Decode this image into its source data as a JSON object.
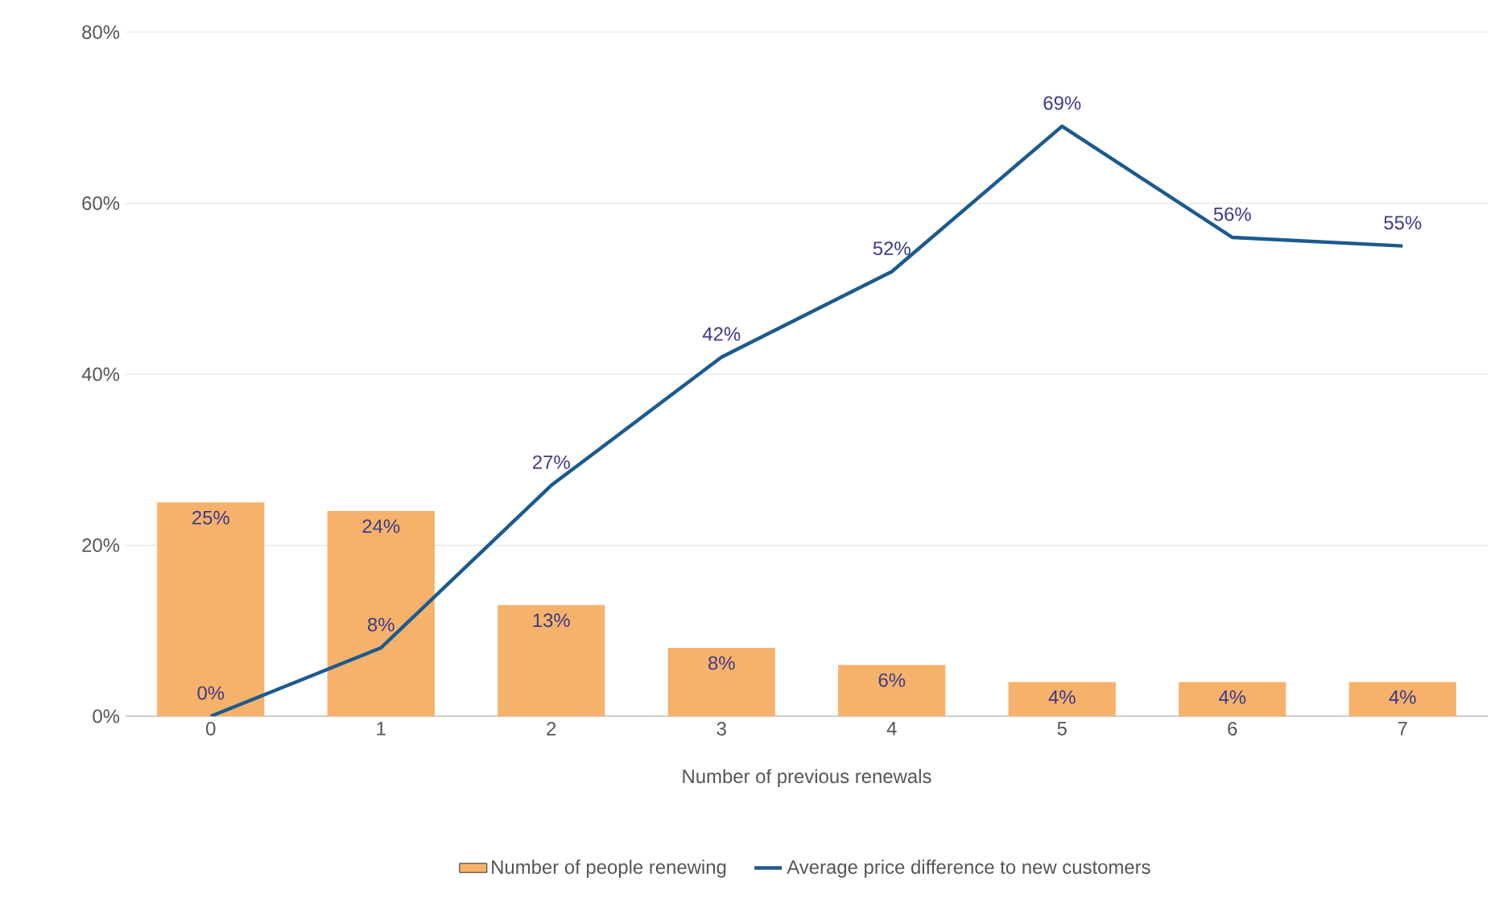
{
  "chart_data": {
    "type": "bar",
    "xlabel": "Number of previous renewals",
    "categories": [
      "0",
      "1",
      "2",
      "3",
      "4",
      "5",
      "6",
      "7"
    ],
    "series": [
      {
        "name": "Number of people renewing",
        "color": "#f6b26b",
        "values": [
          25,
          24,
          13,
          8,
          6,
          4,
          4,
          4
        ],
        "value_labels": [
          "25%",
          "24%",
          "13%",
          "8%",
          "6%",
          "4%",
          "4%",
          "4%"
        ]
      },
      {
        "name": "Average price difference to new customers",
        "type": "line",
        "color": "#1c5a8f",
        "values": [
          0,
          8,
          27,
          42,
          52,
          69,
          56,
          55
        ],
        "value_labels": [
          "0%",
          "8%",
          "27%",
          "42%",
          "52%",
          "69%",
          "56%",
          "55%"
        ]
      }
    ],
    "ylim": [
      0,
      80
    ],
    "yticks": [
      {
        "value": 0,
        "label": "0%"
      },
      {
        "value": 20,
        "label": "20%"
      },
      {
        "value": 40,
        "label": "40%"
      },
      {
        "value": 60,
        "label": "60%"
      },
      {
        "value": 80,
        "label": "80%"
      }
    ],
    "grid": "y",
    "legend": "bottom",
    "marker": "none",
    "line_style": "solid"
  }
}
